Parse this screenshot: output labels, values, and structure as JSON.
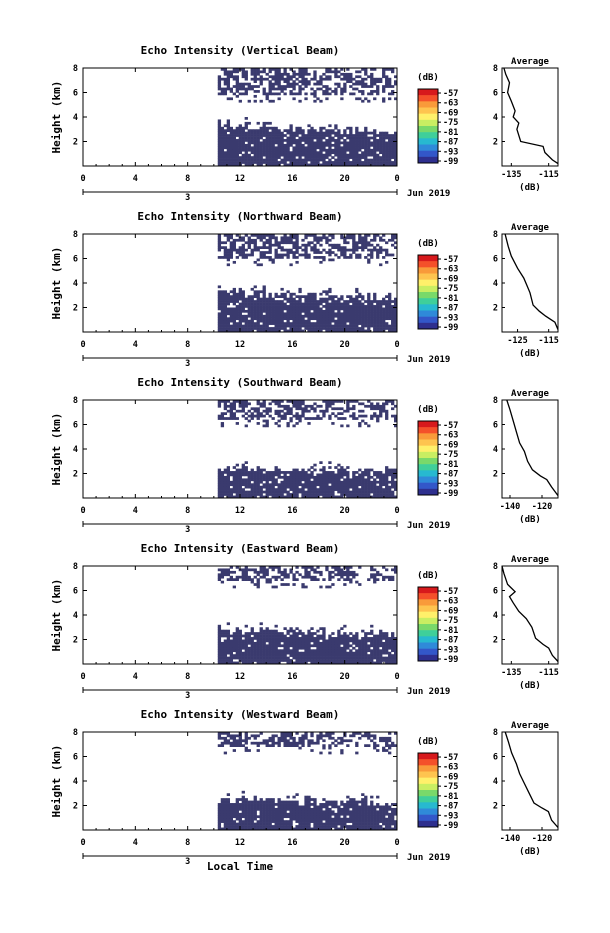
{
  "figure": {
    "xlabel": "Local Time",
    "date_label": "3",
    "month_label": "Jun 2019",
    "colorbar_unit": "(dB)",
    "colorbar_ticks": [
      "-57",
      "-63",
      "-69",
      "-75",
      "-81",
      "-87",
      "-93",
      "-99"
    ],
    "colorbar_colors": [
      "#d7191c",
      "#f4502a",
      "#f99a3a",
      "#fec44f",
      "#fff06a",
      "#c9ee62",
      "#79d96a",
      "#3fcf9a",
      "#27b9d0",
      "#2f8ad9",
      "#3357c9",
      "#2e2f8e"
    ],
    "nodata_color": "#3a3a6e"
  },
  "chart_data": [
    {
      "type": "heatmap",
      "title": "Echo Intensity (Vertical Beam)",
      "xlabel": "",
      "ylabel": "Height (km)",
      "x_ticks": [
        "0",
        "4",
        "8",
        "12",
        "16",
        "20",
        "0"
      ],
      "xlim": [
        0,
        24
      ],
      "y_ticks": [
        "2",
        "4",
        "6",
        "8"
      ],
      "ylim": [
        0,
        8
      ],
      "data_start_hour": 10.3,
      "lower_layer_top_km": 3.2,
      "upper_layer_base_km": 5.8,
      "profile": {
        "title": "Average",
        "xlabel": "(dB)",
        "x_ticks": [
          "-135",
          "-115"
        ],
        "y_ticks": [
          "2",
          "4",
          "6",
          "8"
        ],
        "xlim": [
          -140,
          -110
        ],
        "ylim": [
          0,
          8
        ],
        "points": [
          [
            -110,
            0.2
          ],
          [
            -113,
            0.5
          ],
          [
            -117,
            1.1
          ],
          [
            -118,
            1.6
          ],
          [
            -130,
            2.0
          ],
          [
            -132,
            3.0
          ],
          [
            -131,
            3.5
          ],
          [
            -134,
            4.0
          ],
          [
            -133,
            4.5
          ],
          [
            -135,
            5.3
          ],
          [
            -137,
            6.0
          ],
          [
            -136,
            6.8
          ],
          [
            -138,
            7.5
          ],
          [
            -139,
            8.0
          ]
        ]
      }
    },
    {
      "type": "heatmap",
      "title": "Echo Intensity (Northward Beam)",
      "xlabel": "",
      "ylabel": "Height (km)",
      "x_ticks": [
        "0",
        "4",
        "8",
        "12",
        "16",
        "20",
        "0"
      ],
      "xlim": [
        0,
        24
      ],
      "y_ticks": [
        "2",
        "4",
        "6",
        "8"
      ],
      "ylim": [
        0,
        8
      ],
      "data_start_hour": 10.3,
      "lower_layer_top_km": 3.2,
      "upper_layer_base_km": 6.0,
      "profile": {
        "title": "Average",
        "xlabel": "(dB)",
        "x_ticks": [
          "-125",
          "-115"
        ],
        "y_ticks": [
          "2",
          "4",
          "6",
          "8"
        ],
        "xlim": [
          -130,
          -112
        ],
        "ylim": [
          0,
          8
        ],
        "points": [
          [
            -112,
            0.2
          ],
          [
            -113,
            0.8
          ],
          [
            -116,
            1.3
          ],
          [
            -118,
            1.7
          ],
          [
            -120,
            2.2
          ],
          [
            -121,
            3.2
          ],
          [
            -122,
            3.8
          ],
          [
            -123,
            4.4
          ],
          [
            -125,
            5.2
          ],
          [
            -127,
            6.2
          ],
          [
            -128,
            7.0
          ],
          [
            -129,
            8.0
          ]
        ]
      }
    },
    {
      "type": "heatmap",
      "title": "Echo Intensity (Southward Beam)",
      "xlabel": "",
      "ylabel": "Height (km)",
      "x_ticks": [
        "0",
        "4",
        "8",
        "12",
        "16",
        "20",
        "0"
      ],
      "xlim": [
        0,
        24
      ],
      "y_ticks": [
        "2",
        "4",
        "6",
        "8"
      ],
      "ylim": [
        0,
        8
      ],
      "data_start_hour": 10.3,
      "lower_layer_top_km": 2.5,
      "upper_layer_base_km": 6.3,
      "profile": {
        "title": "Average",
        "xlabel": "(dB)",
        "x_ticks": [
          "-140",
          "-120"
        ],
        "y_ticks": [
          "2",
          "4",
          "6",
          "8"
        ],
        "xlim": [
          -145,
          -110
        ],
        "ylim": [
          0,
          8
        ],
        "points": [
          [
            -110,
            0.2
          ],
          [
            -114,
            0.9
          ],
          [
            -117,
            1.5
          ],
          [
            -121,
            1.8
          ],
          [
            -126,
            2.3
          ],
          [
            -129,
            3.0
          ],
          [
            -131,
            3.8
          ],
          [
            -134,
            4.5
          ],
          [
            -136,
            5.4
          ],
          [
            -138,
            6.3
          ],
          [
            -140,
            7.2
          ],
          [
            -142,
            8.0
          ]
        ]
      }
    },
    {
      "type": "heatmap",
      "title": "Echo Intensity (Eastward Beam)",
      "xlabel": "",
      "ylabel": "Height (km)",
      "x_ticks": [
        "0",
        "4",
        "8",
        "12",
        "16",
        "20",
        "0"
      ],
      "xlim": [
        0,
        24
      ],
      "y_ticks": [
        "2",
        "4",
        "6",
        "8"
      ],
      "ylim": [
        0,
        8
      ],
      "data_start_hour": 10.3,
      "lower_layer_top_km": 2.8,
      "upper_layer_base_km": 6.7,
      "profile": {
        "title": "Average",
        "xlabel": "(dB)",
        "x_ticks": [
          "-135",
          "-115"
        ],
        "y_ticks": [
          "2",
          "4",
          "6",
          "8"
        ],
        "xlim": [
          -140,
          -110
        ],
        "ylim": [
          0,
          8
        ],
        "points": [
          [
            -110,
            0.2
          ],
          [
            -113,
            0.7
          ],
          [
            -115,
            1.3
          ],
          [
            -118,
            1.6
          ],
          [
            -122,
            2.1
          ],
          [
            -124,
            3.0
          ],
          [
            -127,
            3.7
          ],
          [
            -131,
            4.3
          ],
          [
            -134,
            5.0
          ],
          [
            -136,
            5.5
          ],
          [
            -133,
            5.9
          ],
          [
            -137,
            6.5
          ],
          [
            -139,
            7.4
          ],
          [
            -140,
            8.0
          ]
        ]
      }
    },
    {
      "type": "heatmap",
      "title": "Echo Intensity (Westward Beam)",
      "xlabel": "Local Time",
      "ylabel": "Height (km)",
      "x_ticks": [
        "0",
        "4",
        "8",
        "12",
        "16",
        "20",
        "0"
      ],
      "xlim": [
        0,
        24
      ],
      "y_ticks": [
        "2",
        "4",
        "6",
        "8"
      ],
      "ylim": [
        0,
        8
      ],
      "data_start_hour": 10.3,
      "lower_layer_top_km": 2.5,
      "upper_layer_base_km": 6.8,
      "profile": {
        "title": "Average",
        "xlabel": "(dB)",
        "x_ticks": [
          "-140",
          "-120"
        ],
        "y_ticks": [
          "2",
          "4",
          "6",
          "8"
        ],
        "xlim": [
          -145,
          -110
        ],
        "ylim": [
          0,
          8
        ],
        "points": [
          [
            -110,
            0.2
          ],
          [
            -114,
            0.8
          ],
          [
            -116,
            1.5
          ],
          [
            -120,
            1.8
          ],
          [
            -125,
            2.2
          ],
          [
            -128,
            3.0
          ],
          [
            -131,
            3.8
          ],
          [
            -134,
            4.6
          ],
          [
            -136,
            5.4
          ],
          [
            -139,
            6.3
          ],
          [
            -141,
            7.2
          ],
          [
            -143,
            8.0
          ]
        ]
      }
    }
  ]
}
